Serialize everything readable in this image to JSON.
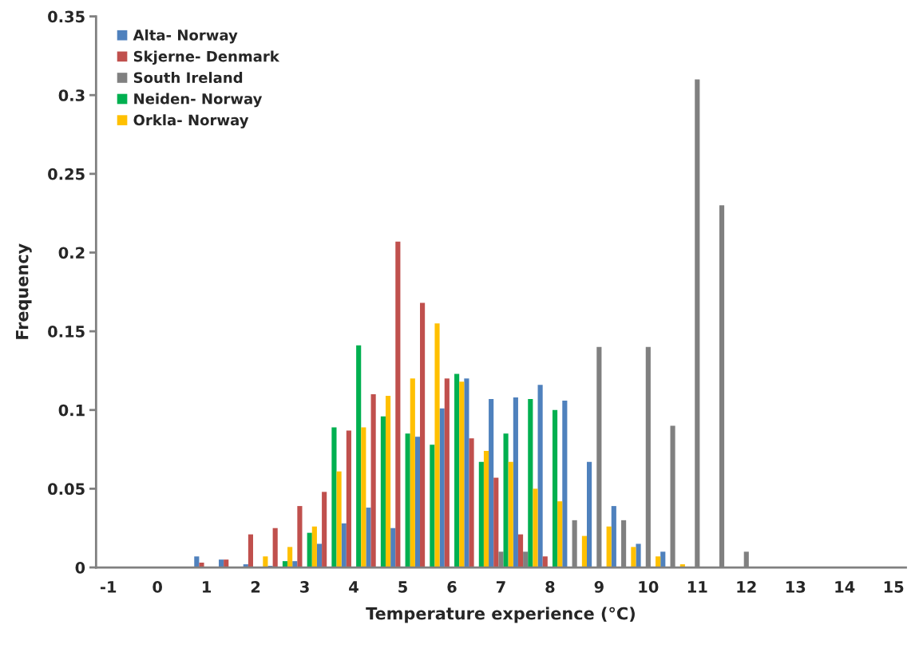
{
  "chart_data": {
    "type": "bar",
    "xlabel": "Temperature experience (°C)",
    "ylabel": "Frequency",
    "categories": [
      "-1",
      null,
      "0",
      null,
      "1",
      null,
      "2",
      null,
      "3",
      null,
      "4",
      null,
      "5",
      null,
      "6",
      null,
      "7",
      null,
      "8",
      null,
      "9",
      null,
      "10",
      null,
      "11",
      null,
      "12",
      null,
      "13",
      null,
      "14",
      null,
      "15"
    ],
    "series": [
      {
        "name": "Alta- Norway",
        "color": "#4f81bd",
        "values": [
          null,
          null,
          null,
          null,
          0.007,
          0.005,
          0.002,
          0.001,
          0.004,
          0.015,
          0.028,
          0.038,
          0.025,
          0.083,
          0.101,
          0.12,
          0.107,
          0.108,
          0.116,
          0.106,
          0.067,
          0.039,
          0.015,
          0.01,
          null,
          null,
          null,
          null,
          null,
          null,
          null,
          null,
          null
        ]
      },
      {
        "name": "Skjerne- Denmark",
        "color": "#c0504d",
        "values": [
          null,
          null,
          null,
          null,
          0.003,
          0.005,
          0.021,
          0.025,
          0.039,
          0.048,
          0.087,
          0.11,
          0.207,
          0.168,
          0.12,
          0.082,
          0.057,
          0.021,
          0.007,
          null,
          null,
          null,
          null,
          null,
          null,
          null,
          null,
          null,
          null,
          null,
          null,
          null,
          null
        ]
      },
      {
        "name": "South Ireland",
        "color": "#808080",
        "values": [
          null,
          null,
          null,
          null,
          null,
          null,
          null,
          null,
          null,
          null,
          null,
          null,
          null,
          null,
          null,
          null,
          0.01,
          0.01,
          null,
          0.03,
          0.14,
          0.03,
          0.14,
          0.09,
          0.31,
          0.23,
          0.01,
          null,
          null,
          null,
          null,
          null,
          null
        ]
      },
      {
        "name": "Neiden- Norway",
        "color": "#00b050",
        "values": [
          null,
          null,
          null,
          null,
          null,
          null,
          null,
          0.004,
          0.022,
          0.089,
          0.141,
          0.096,
          0.085,
          0.078,
          0.123,
          0.067,
          0.085,
          0.107,
          0.1,
          null,
          null,
          null,
          null,
          null,
          null,
          null,
          null,
          null,
          null,
          null,
          null,
          null,
          null
        ]
      },
      {
        "name": "Orkla- Norway",
        "color": "#ffc000",
        "values": [
          null,
          null,
          null,
          null,
          null,
          null,
          0.007,
          0.013,
          0.026,
          0.061,
          0.089,
          0.109,
          0.12,
          0.155,
          0.118,
          0.074,
          0.067,
          0.05,
          0.042,
          0.02,
          0.026,
          0.013,
          0.007,
          0.002,
          null,
          null,
          null,
          null,
          null,
          null,
          null,
          null,
          null
        ]
      }
    ],
    "ylim": [
      0,
      0.35
    ],
    "yticks": [
      0,
      0.05,
      0.1,
      0.15,
      0.2,
      0.25,
      0.3,
      0.35
    ],
    "grid": false,
    "legend": "top left"
  }
}
